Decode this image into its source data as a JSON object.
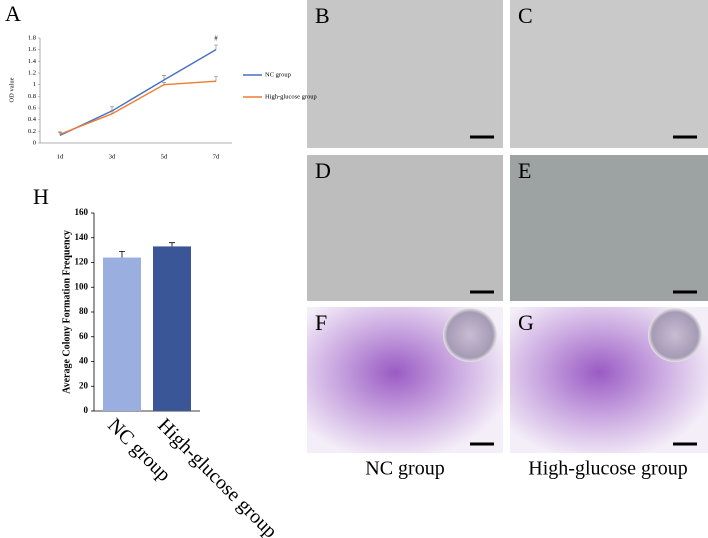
{
  "chart_data": [
    {
      "type": "line",
      "panel_label": "A",
      "y_label": "OD value",
      "categories": [
        "1d",
        "3d",
        "5d",
        "7d"
      ],
      "series": [
        {
          "name": "NC group",
          "color": "#4472c4",
          "values": [
            0.13,
            0.55,
            1.08,
            1.6
          ],
          "errors": [
            0.05,
            0.07,
            0.08,
            0.08
          ]
        },
        {
          "name": "High-glucose group",
          "color": "#ed7d31",
          "values": [
            0.15,
            0.5,
            1.0,
            1.06
          ],
          "errors": [
            0.04,
            0.05,
            0.04,
            0.08
          ]
        }
      ],
      "annotation": "#",
      "ylim": [
        0,
        1.8
      ],
      "yticks": [
        0,
        0.2,
        0.4,
        0.6,
        0.8,
        1,
        1.2,
        1.4,
        1.6,
        1.8
      ],
      "legend": "right"
    },
    {
      "type": "bar",
      "panel_label": "H",
      "y_label": "Average Colony Formation Frequency",
      "categories": [
        "NC group",
        "High-glucose group"
      ],
      "values": [
        124,
        133
      ],
      "errors": [
        5,
        3
      ],
      "colors": [
        "#9aaee0",
        "#3b5697"
      ],
      "ylim": [
        0,
        160
      ],
      "yticks": [
        0,
        20,
        40,
        60,
        80,
        100,
        120,
        140,
        160
      ]
    }
  ],
  "image_panels": [
    "B",
    "C",
    "D",
    "E",
    "F",
    "G"
  ],
  "captions": [
    "NC group",
    "High-glucose group"
  ]
}
